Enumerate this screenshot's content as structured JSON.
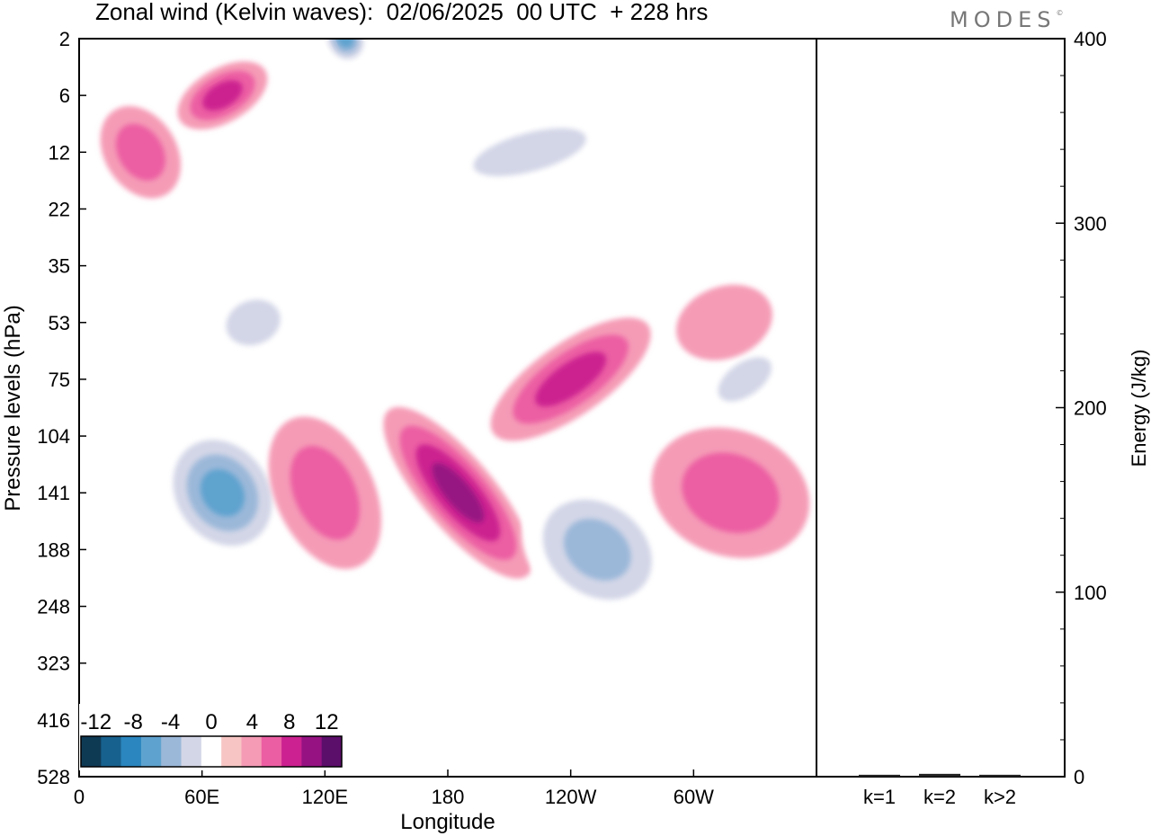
{
  "header": {
    "title": "Zonal wind (Kelvin waves):  02/06/2025  00 UTC  + 228 hrs",
    "logo_text": "MODES",
    "logo_mark": "©"
  },
  "chart_data": [
    {
      "type": "heatmap",
      "title": "Zonal wind (Kelvin waves):  02/06/2025  00 UTC  + 228 hrs",
      "xlabel": "Longitude",
      "ylabel": "Pressure levels (hPa)",
      "x_ticks": [
        "0",
        "60E",
        "120E",
        "180",
        "120W",
        "60W"
      ],
      "x_tick_values": [
        0,
        60,
        120,
        180,
        240,
        300
      ],
      "xlim": [
        0,
        360
      ],
      "y_ticks": [
        "2",
        "6",
        "12",
        "22",
        "35",
        "53",
        "75",
        "104",
        "141",
        "188",
        "248",
        "323",
        "416",
        "528"
      ],
      "y_scale": "model levels (reversed, top = 2 hPa)",
      "colorbar": {
        "labels": [
          "-12",
          "-8",
          "-4",
          "0",
          "4",
          "8",
          "12"
        ],
        "label_values": [
          -12,
          -8,
          -4,
          0,
          4,
          8,
          12
        ],
        "levels": [
          -14,
          -12,
          -10,
          -8,
          -6,
          -4,
          -2,
          2,
          4,
          6,
          8,
          10,
          12,
          14
        ],
        "colors": [
          "#0f3a54",
          "#17618e",
          "#2b86bf",
          "#5ea3cf",
          "#9bb8d9",
          "#d3d6e7",
          "#ffffff",
          "#f7c6c4",
          "#f59bb6",
          "#ec5ea3",
          "#cc2190",
          "#961282",
          "#5c0e6b"
        ],
        "placement": "bottom-left"
      },
      "features": [
        {
          "lon": 30,
          "level": "12",
          "value": 5
        },
        {
          "lon": 70,
          "level": "6",
          "value": 6
        },
        {
          "lon": 70,
          "level": "141",
          "value": -9
        },
        {
          "lon": 130,
          "level": "2",
          "value": -8
        },
        {
          "lon": 85,
          "level": "53",
          "value": -4
        },
        {
          "lon": 120,
          "level": "141",
          "value": 5
        },
        {
          "lon": 185,
          "level": "141",
          "value": 8
        },
        {
          "lon": 240,
          "level": "75",
          "value": 6
        },
        {
          "lon": 253,
          "level": "188",
          "value": -7
        },
        {
          "lon": 318,
          "level": "141",
          "value": 5
        },
        {
          "lon": 325,
          "level": "75",
          "value": -5
        },
        {
          "lon": 220,
          "level": "12",
          "value": -4
        },
        {
          "lon": 315,
          "level": "53",
          "value": 3
        }
      ],
      "grid": false
    },
    {
      "type": "bar",
      "ylabel": "Energy (J/kg)",
      "categories": [
        "k=1",
        "k=2",
        "k>2"
      ],
      "values": [
        0.3,
        0.8,
        0.3
      ],
      "ylim": [
        0,
        400
      ],
      "y_ticks": [
        "0",
        "100",
        "200",
        "300",
        "400"
      ],
      "y_tick_values": [
        0,
        100,
        200,
        300,
        400
      ]
    }
  ]
}
